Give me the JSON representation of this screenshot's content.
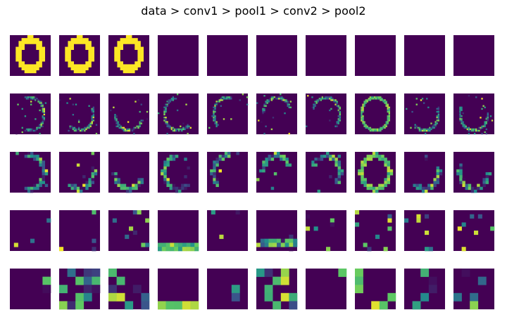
{
  "figure": {
    "title": "data > conv1 > pool1 > conv2 > pool2"
  },
  "colors": {
    "background": "#ffffff",
    "colormap": "viridis",
    "low": "#440154",
    "mid": "#21918c",
    "high": "#fde725"
  },
  "rows": [
    {
      "layer": "data",
      "panels": 10
    },
    {
      "layer": "conv1",
      "panels": 10
    },
    {
      "layer": "pool1",
      "panels": 10
    },
    {
      "layer": "conv2",
      "panels": 10
    },
    {
      "layer": "pool2",
      "panels": 10
    }
  ]
}
